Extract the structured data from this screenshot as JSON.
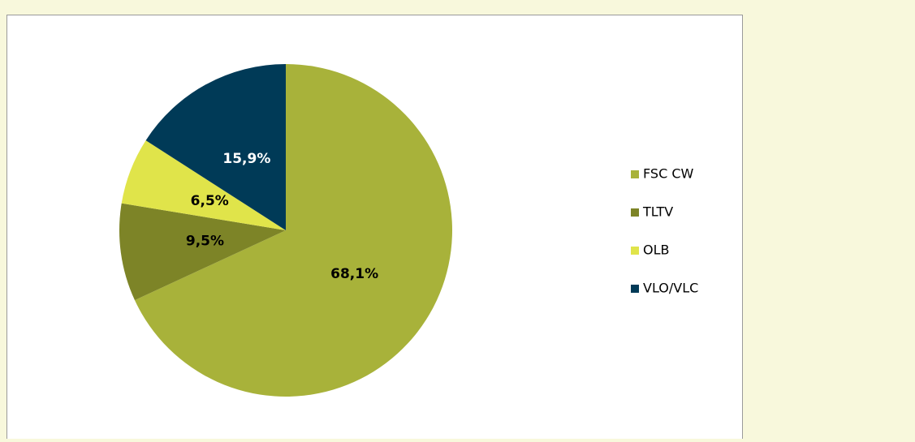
{
  "chart_data": {
    "type": "pie",
    "categories": [
      "FSC CW",
      "TLTV",
      "OLB",
      "VLO/VLC"
    ],
    "values": [
      68.1,
      9.5,
      6.5,
      15.9
    ],
    "value_labels": [
      "68,1%",
      "9,5%",
      "6,5%",
      "15,9%"
    ],
    "colors": [
      "#a8b23a",
      "#7d8427",
      "#e0e44a",
      "#003a57"
    ],
    "legend": "right"
  }
}
